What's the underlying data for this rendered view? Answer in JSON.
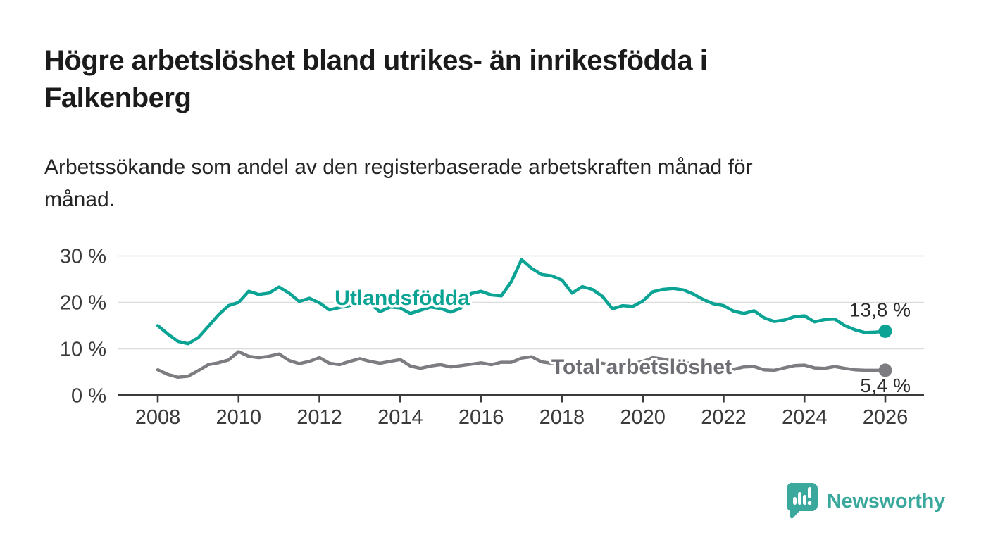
{
  "header": {
    "title_lines": [
      "Högre arbetslöshet bland utrikes- än inrikesfödda i",
      "Falkenberg"
    ],
    "subtitle_lines": [
      "Arbetssökande som andel av den registerbaserade arbetskraften månad för",
      "månad."
    ]
  },
  "chart_data": {
    "type": "line",
    "title": "Högre arbetslöshet bland utrikes- än inrikesfödda i Falkenberg",
    "subtitle": "Arbetssökande som andel av den registerbaserade arbetskraften månad för månad.",
    "unit": "%",
    "grid": "horizontal",
    "legend_position": "inline-labels-on-lines",
    "xlim": [
      2007.0,
      2027.0
    ],
    "ylim": [
      0,
      31
    ],
    "x_tick_values": [
      2008,
      2010,
      2012,
      2014,
      2016,
      2018,
      2020,
      2022,
      2024,
      2026
    ],
    "x_tick_labels": [
      "2008",
      "2010",
      "2012",
      "2014",
      "2016",
      "2018",
      "2020",
      "2022",
      "2024",
      "2026"
    ],
    "y_tick_values": [
      0,
      10,
      20,
      30
    ],
    "y_tick_labels": [
      "0 %",
      "10 %",
      "20 %",
      "30 %"
    ],
    "x_start": 2008.0,
    "x_step": 0.25,
    "series": [
      {
        "name": "Utlandsfödda",
        "color": "#0aa394",
        "end_label": "13,8 %",
        "end_value": 13.8,
        "values": [
          15.0,
          13.2,
          11.6,
          11.1,
          12.4,
          14.8,
          17.3,
          19.3,
          20.0,
          22.4,
          21.7,
          22.0,
          23.3,
          22.0,
          20.2,
          20.9,
          19.9,
          18.4,
          18.9,
          19.3,
          21.6,
          19.7,
          18.0,
          19.0,
          18.8,
          17.6,
          18.3,
          19.0,
          18.7,
          17.9,
          18.8,
          21.9,
          22.4,
          21.6,
          21.4,
          24.5,
          29.2,
          27.3,
          26.0,
          25.7,
          24.8,
          22.0,
          23.4,
          22.8,
          21.3,
          18.6,
          19.3,
          19.1,
          20.3,
          22.3,
          22.8,
          23.0,
          22.7,
          21.8,
          20.6,
          19.7,
          19.3,
          18.1,
          17.6,
          18.2,
          16.7,
          15.9,
          16.2,
          16.9,
          17.1,
          15.8,
          16.3,
          16.4,
          15.0,
          14.1,
          13.5,
          13.6,
          13.8
        ]
      },
      {
        "name": "Total arbetslöshet",
        "color": "#7c7c81",
        "end_label": "5,4 %",
        "end_value": 5.4,
        "values": [
          5.5,
          4.5,
          3.9,
          4.1,
          5.3,
          6.6,
          7.0,
          7.6,
          9.4,
          8.4,
          8.1,
          8.4,
          8.9,
          7.5,
          6.8,
          7.3,
          8.1,
          6.9,
          6.6,
          7.3,
          7.9,
          7.3,
          6.9,
          7.3,
          7.7,
          6.3,
          5.8,
          6.3,
          6.6,
          6.1,
          6.4,
          6.7,
          7.0,
          6.6,
          7.1,
          7.1,
          8.0,
          8.3,
          7.2,
          6.9,
          7.3,
          6.6,
          6.4,
          6.7,
          6.9,
          6.4,
          6.5,
          6.8,
          7.3,
          8.1,
          7.8,
          7.5,
          7.2,
          6.7,
          6.2,
          5.9,
          5.7,
          5.6,
          6.1,
          6.2,
          5.5,
          5.4,
          5.9,
          6.4,
          6.5,
          5.9,
          5.8,
          6.2,
          5.8,
          5.5,
          5.4,
          5.4,
          5.4
        ]
      }
    ]
  },
  "footer": {
    "brand": "Newsworthy"
  },
  "colors": {
    "accent_teal": "#0aa394",
    "series_gray": "#7c7c81",
    "label_gray": "#6d6d73",
    "logo_teal": "#3aa89c",
    "axis_dark": "#3b3b3b",
    "grid_light": "#dcdcdc",
    "text_dark": "#2b2b2b"
  }
}
